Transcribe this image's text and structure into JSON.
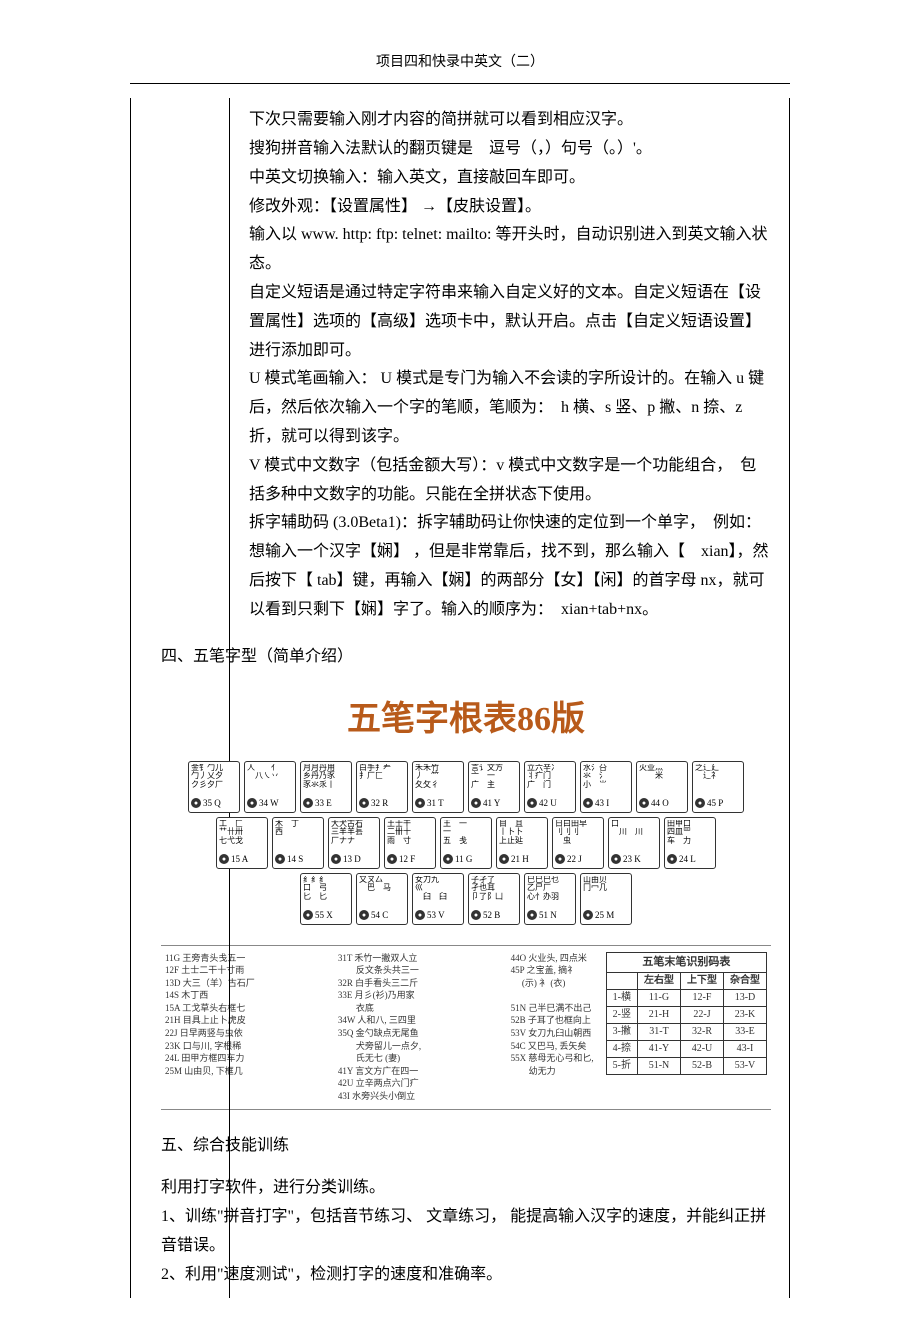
{
  "header": {
    "title": "项目四和快录中英文（二）"
  },
  "paragraphs": {
    "p1": "下次只需要输入刚才内容的简拼就可以看到相应汉字。",
    "p2": "搜狗拼音输入法默认的翻页键是　逗号（，）句号（。）'。",
    "p3": "中英文切换输入：输入英文，直接敲回车即可。",
    "p4": "修改外观：【设置属性】 →【皮肤设置】。",
    "p5": "输入以 www. http: ftp: telnet: mailto: 等开头时，自动识别进入到英文输入状态。",
    "p6": "自定义短语是通过特定字符串来输入自定义好的文本。自定义短语在【设置属性】选项的【高级】选项卡中，默认开启。点击【自定义短语设置】进行添加即可。",
    "p7": "U 模式笔画输入： U 模式是专门为输入不会读的字所设计的。在输入 u 键后，然后依次输入一个字的笔顺，笔顺为：　h 横、s 竖、p 撇、n 捺、z 折，就可以得到该字。",
    "p8": "V 模式中文数字（包括金额大写）：v 模式中文数字是一个功能组合，　包括多种中文数字的功能。只能在全拼状态下使用。",
    "p9": "拆字辅助码 (3.0Beta1)：拆字辅助码让你快速的定位到一个单字，　例如：想输入一个汉字【娴】 ，但是非常靠后，找不到，那么输入【　xian】，然后按下【 tab】键，再输入【娴】的两部分【女】【闲】的首字母 nx，就可以看到只剩下【娴】字了。输入的顺序为：　xian+tab+nx。"
  },
  "section4": {
    "heading": "四、五笔字型（简单介绍）"
  },
  "wubi": {
    "title": "五笔字根表86版",
    "title_color": "#b85a1a",
    "rows": [
      [
        {
          "roots": "金钅勹儿\n勹丿乂夕\nク彡夕厂",
          "code": "35 Q"
        },
        {
          "roots": "人　　亻\n　八㇏丷\n",
          "code": "34 W"
        },
        {
          "roots": "月月丹用\n乡丹乃豕\n豕氺乑丨",
          "code": "33 E"
        },
        {
          "roots": "白手扌龵\n扌厂匚",
          "code": "32 R"
        },
        {
          "roots": "禾禾竹\n丿　⺮\n夂攵彳",
          "code": "31 T"
        },
        {
          "roots": "言讠文方\n亠　一\n广　主",
          "code": "41 Y"
        },
        {
          "roots": "立六辛冫\n丬疒门\n广　门",
          "code": "42 U"
        },
        {
          "roots": "水氵㕣\n氺　氵\n小　⺌",
          "code": "43 I"
        },
        {
          "roots": "火业灬\n　　米",
          "code": "44 O"
        },
        {
          "roots": "之辶廴\n　辶礻",
          "code": "45 P"
        }
      ],
      [
        {
          "roots": "工　匚\n艹卄卅\n七弋戈",
          "code": "15 A"
        },
        {
          "roots": "木　丁\n西",
          "code": "14 S"
        },
        {
          "roots": "大犬古石\n三羊羊镸\n厂ナナ",
          "code": "13 D"
        },
        {
          "roots": "土士干\n二卌十\n雨　寸",
          "code": "12 F"
        },
        {
          "roots": "王　一\n一\n五　戋",
          "code": "11 G"
        },
        {
          "roots": "目　且\n丨卜卜\n上止㢟",
          "code": "21 H"
        },
        {
          "roots": "日曰田早\n刂刂刂\n　虫",
          "code": "22 J"
        },
        {
          "roots": "口\n　川　川",
          "code": "23 K"
        },
        {
          "roots": "田甲口\n四皿罒\n车　力",
          "code": "24 L"
        }
      ],
      [
        {
          "roots": "纟纟纟\n口　弓\n匕　匕",
          "code": "55 X"
        },
        {
          "roots": "又ㄡ厶\n　巴　马",
          "code": "54 C"
        },
        {
          "roots": "女刀九\n巛\n　臼　臼",
          "code": "53 V"
        },
        {
          "roots": "子孑了\n孑也耳\n卩了阝凵",
          "code": "52 B"
        },
        {
          "roots": "巳巳巳乜\n乙尸厂\n心忄办羽",
          "code": "51 N"
        },
        {
          "roots": "山由贝\n冂冖几",
          "code": "25 M"
        }
      ]
    ],
    "mnemonic_cols": [
      "11G 王旁青头戋五一\n12F 土士二干十寸雨\n13D 大三（羊）古石厂\n14S 木丁西\n15A 工戈草头右框七\n21H 目具上止卜虎皮\n22J 日早两竖与虫依\n23K 口与川, 字根稀\n24L 田甲方框四车力\n25M 山由贝, 下框几",
      "31T 禾竹一撇双人立\n　　反文条头共三一\n32R 白手看头三二斤\n33E 月彡(衫)乃用家\n　　衣底\n34W 人和八, 三四里\n35Q 金勺缺点无尾鱼\n　　犬旁留儿一点夕,\n　　氏无七 (妻)\n41Y 言文方广在四一\n42U 立辛两点六门疒\n43I 水旁兴头小倒立",
      "44O 火业头, 四点米\n45P 之宝盖, 摘礻\n　 (示) 衤 (衣)\n\n51N 己半巳满不出己\n52B 子耳了也框向上\n53V 女刀九臼山朝西\n54C 又巴马, 丢矢矣\n55X 慈母无心弓和匕,\n　　幼无力"
    ],
    "id_table": {
      "title": "五笔末笔识别码表",
      "headers": [
        "",
        "左右型",
        "上下型",
        "杂合型"
      ],
      "rows": [
        [
          "1-横",
          "11-G",
          "12-F",
          "13-D"
        ],
        [
          "2-竖",
          "21-H",
          "22-J",
          "23-K"
        ],
        [
          "3-撇",
          "31-T",
          "32-R",
          "33-E"
        ],
        [
          "4-捺",
          "41-Y",
          "42-U",
          "43-I"
        ],
        [
          "5-折",
          "51-N",
          "52-B",
          "53-V"
        ]
      ]
    }
  },
  "section5": {
    "heading": "五、综合技能训练",
    "p1": "利用打字软件，进行分类训练。",
    "p2": "1、训练\"拼音打字\"，包括音节练习、 文章练习， 能提高输入汉字的速度，并能纠正拼音错误。",
    "p3": "2、利用\"速度测试\"，检测打字的速度和准确率。"
  }
}
